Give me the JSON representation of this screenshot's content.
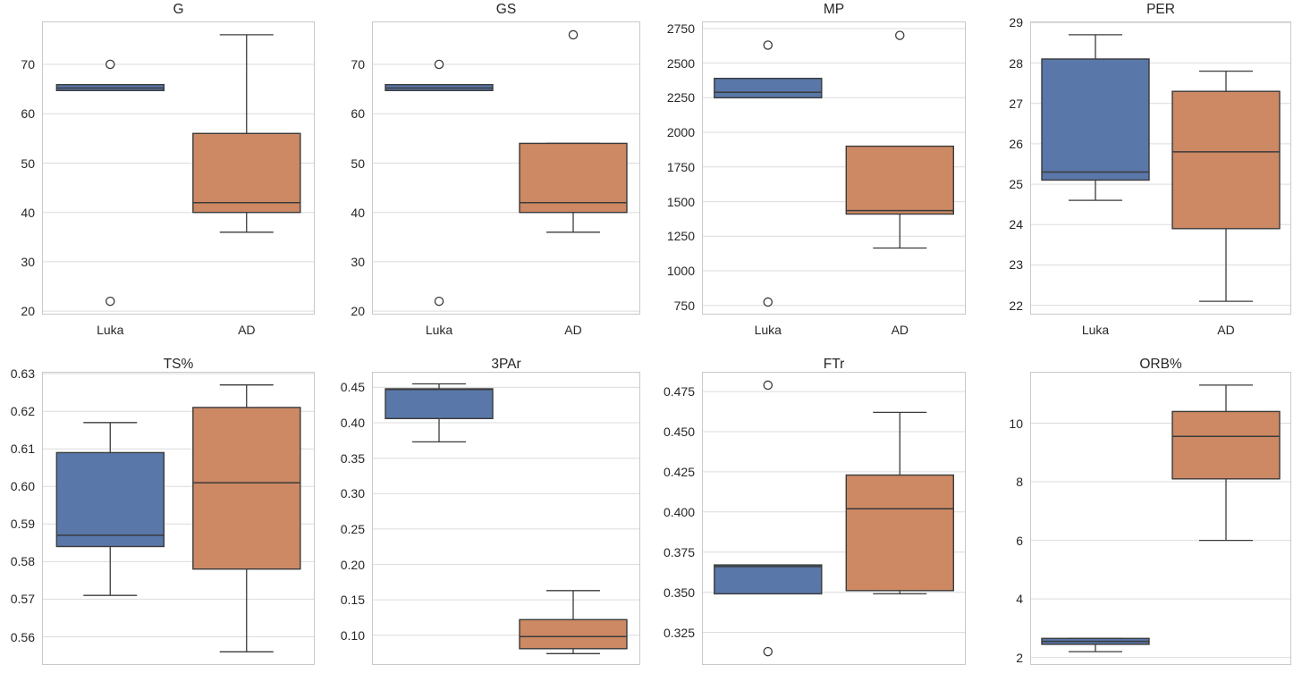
{
  "figure": {
    "background": "#ffffff",
    "grid_color": "#dcdcdc",
    "spine_color": "#c9c9c9",
    "text_color": "#262626",
    "box_edge_color": "#3b3b3b",
    "outlier_fill": "#ffffff",
    "groups": [
      "Luka",
      "AD"
    ],
    "group_colors": [
      "#5977a9",
      "#cc8963"
    ]
  },
  "chart_data": [
    {
      "type": "boxplot",
      "title": "G",
      "categories": [
        "Luka",
        "AD"
      ],
      "ylim": [
        19.3,
        78.7
      ],
      "yticks": [
        20,
        30,
        40,
        50,
        60,
        70
      ],
      "ytick_labels": [
        "20",
        "30",
        "40",
        "50",
        "60",
        "70"
      ],
      "series": [
        {
          "name": "Luka",
          "whisker_low": 64.7,
          "q1": 64.7,
          "median": 65.2,
          "q3": 65.9,
          "whisker_high": 65.9,
          "outliers": [
            70,
            22
          ]
        },
        {
          "name": "AD",
          "whisker_low": 36,
          "q1": 40,
          "median": 42,
          "q3": 56,
          "whisker_high": 76,
          "outliers": []
        }
      ]
    },
    {
      "type": "boxplot",
      "title": "GS",
      "categories": [
        "Luka",
        "AD"
      ],
      "ylim": [
        19.3,
        78.7
      ],
      "yticks": [
        20,
        30,
        40,
        50,
        60,
        70
      ],
      "ytick_labels": [
        "20",
        "30",
        "40",
        "50",
        "60",
        "70"
      ],
      "series": [
        {
          "name": "Luka",
          "whisker_low": 64.7,
          "q1": 64.7,
          "median": 65.2,
          "q3": 65.9,
          "whisker_high": 65.9,
          "outliers": [
            70,
            22
          ]
        },
        {
          "name": "AD",
          "whisker_low": 36,
          "q1": 40,
          "median": 42,
          "q3": 54,
          "whisker_high": 54,
          "outliers": [
            76
          ]
        }
      ]
    },
    {
      "type": "boxplot",
      "title": "MP",
      "categories": [
        "Luka",
        "AD"
      ],
      "ylim": [
        684,
        2801
      ],
      "yticks": [
        750,
        1000,
        1250,
        1500,
        1750,
        2000,
        2250,
        2500,
        2750
      ],
      "ytick_labels": [
        "750",
        "1000",
        "1250",
        "1500",
        "1750",
        "2000",
        "2250",
        "2500",
        "2750"
      ],
      "series": [
        {
          "name": "Luka",
          "whisker_low": 2250,
          "q1": 2250,
          "median": 2290,
          "q3": 2390,
          "whisker_high": 2390,
          "outliers": [
            2630,
            775
          ]
        },
        {
          "name": "AD",
          "whisker_low": 1165,
          "q1": 1410,
          "median": 1435,
          "q3": 1900,
          "whisker_high": 1900,
          "outliers": [
            2700
          ]
        }
      ]
    },
    {
      "type": "boxplot",
      "title": "PER",
      "categories": [
        "Luka",
        "AD"
      ],
      "ylim": [
        21.77,
        29.03
      ],
      "yticks": [
        22,
        23,
        24,
        25,
        26,
        27,
        28,
        29
      ],
      "ytick_labels": [
        "22",
        "23",
        "24",
        "25",
        "26",
        "27",
        "28",
        "29"
      ],
      "series": [
        {
          "name": "Luka",
          "whisker_low": 24.6,
          "q1": 25.1,
          "median": 25.3,
          "q3": 28.1,
          "whisker_high": 28.7,
          "outliers": []
        },
        {
          "name": "AD",
          "whisker_low": 22.1,
          "q1": 23.9,
          "median": 25.8,
          "q3": 27.3,
          "whisker_high": 27.8,
          "outliers": []
        }
      ]
    },
    {
      "type": "boxplot",
      "title": "TS%",
      "categories": [
        "Luka",
        "AD"
      ],
      "ylim": [
        0.5525,
        0.6305
      ],
      "yticks": [
        0.56,
        0.57,
        0.58,
        0.59,
        0.6,
        0.61,
        0.62,
        0.63
      ],
      "ytick_labels": [
        "0.56",
        "0.57",
        "0.58",
        "0.59",
        "0.60",
        "0.61",
        "0.62",
        "0.63"
      ],
      "series": [
        {
          "name": "Luka",
          "whisker_low": 0.571,
          "q1": 0.584,
          "median": 0.587,
          "q3": 0.609,
          "whisker_high": 0.617,
          "outliers": []
        },
        {
          "name": "AD",
          "whisker_low": 0.556,
          "q1": 0.578,
          "median": 0.601,
          "q3": 0.621,
          "whisker_high": 0.627,
          "outliers": []
        }
      ]
    },
    {
      "type": "boxplot",
      "title": "3PAr",
      "categories": [
        "Luka",
        "AD"
      ],
      "ylim": [
        0.058,
        0.472
      ],
      "yticks": [
        0.1,
        0.15,
        0.2,
        0.25,
        0.3,
        0.35,
        0.4,
        0.45
      ],
      "ytick_labels": [
        "0.10",
        "0.15",
        "0.20",
        "0.25",
        "0.30",
        "0.35",
        "0.40",
        "0.45"
      ],
      "series": [
        {
          "name": "Luka",
          "whisker_low": 0.373,
          "q1": 0.406,
          "median": 0.447,
          "q3": 0.448,
          "whisker_high": 0.455,
          "outliers": []
        },
        {
          "name": "AD",
          "whisker_low": 0.074,
          "q1": 0.081,
          "median": 0.098,
          "q3": 0.122,
          "whisker_high": 0.163,
          "outliers": []
        }
      ]
    },
    {
      "type": "boxplot",
      "title": "FTr",
      "categories": [
        "Luka",
        "AD"
      ],
      "ylim": [
        0.3047,
        0.4873
      ],
      "yticks": [
        0.325,
        0.35,
        0.375,
        0.4,
        0.425,
        0.45,
        0.475
      ],
      "ytick_labels": [
        "0.325",
        "0.350",
        "0.375",
        "0.400",
        "0.425",
        "0.450",
        "0.475"
      ],
      "series": [
        {
          "name": "Luka",
          "whisker_low": 0.349,
          "q1": 0.349,
          "median": 0.366,
          "q3": 0.367,
          "whisker_high": 0.367,
          "outliers": [
            0.479,
            0.313
          ]
        },
        {
          "name": "AD",
          "whisker_low": 0.349,
          "q1": 0.351,
          "median": 0.402,
          "q3": 0.423,
          "whisker_high": 0.462,
          "outliers": []
        }
      ]
    },
    {
      "type": "boxplot",
      "title": "ORB%",
      "categories": [
        "Luka",
        "AD"
      ],
      "ylim": [
        1.745,
        11.755
      ],
      "yticks": [
        2,
        4,
        6,
        8,
        10
      ],
      "ytick_labels": [
        "2",
        "4",
        "6",
        "8",
        "10"
      ],
      "series": [
        {
          "name": "Luka",
          "whisker_low": 2.2,
          "q1": 2.45,
          "median": 2.55,
          "q3": 2.65,
          "whisker_high": 2.65,
          "outliers": []
        },
        {
          "name": "AD",
          "whisker_low": 6.0,
          "q1": 8.1,
          "median": 9.55,
          "q3": 10.4,
          "whisker_high": 11.3,
          "outliers": []
        }
      ]
    }
  ]
}
